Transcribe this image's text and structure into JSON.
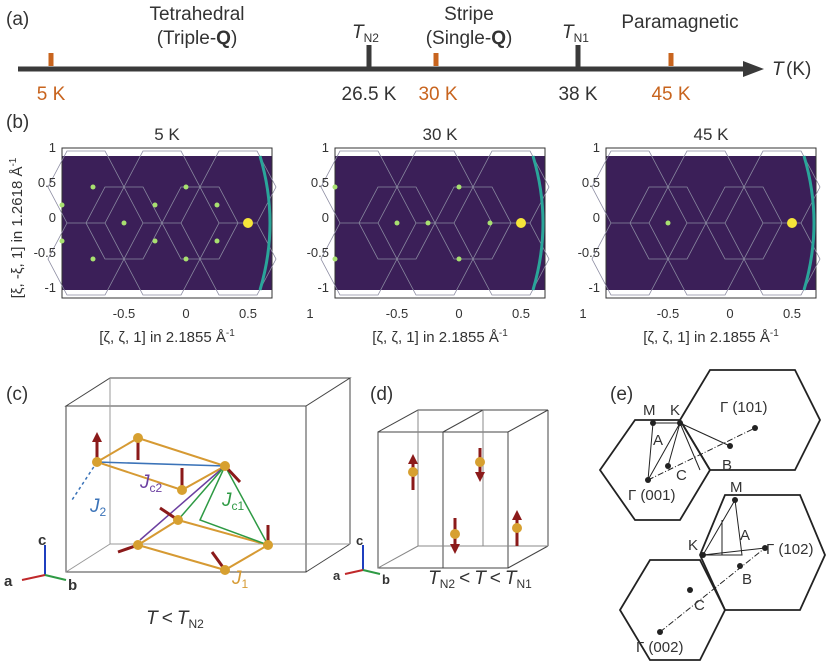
{
  "panel_labels": {
    "a": "(a)",
    "b": "(b)",
    "c": "(c)",
    "d": "(d)",
    "e": "(e)"
  },
  "phase_diagram": {
    "axis_label_T": "T",
    "axis_label_unit": "(K)",
    "phases": [
      {
        "line1": "Tetrahedral",
        "line2": "(Triple-",
        "bold": "Q",
        "close": ")"
      },
      {
        "line1": "Stripe",
        "line2": "(Single-",
        "bold": "Q",
        "close": ")"
      },
      {
        "line1": "Paramagnetic"
      }
    ],
    "transitions": [
      {
        "sym": "T",
        "sub": "N2",
        "value": "26.5 K"
      },
      {
        "sym": "T",
        "sub": "N1",
        "value": "38 K"
      }
    ],
    "measurements": [
      "5 K",
      "30 K",
      "45 K"
    ]
  },
  "maps": {
    "titles": [
      "5 K",
      "30 K",
      "45 K"
    ],
    "y_label": "[ξ, -ξ, 1] in 1.2618 Å",
    "y_label_sup": "-1",
    "x_label": "[ζ, ζ, 1] in 2.1855 Å",
    "x_label_sup": "-1",
    "x_ticks": [
      "-0.5",
      "0",
      "0.5",
      "1"
    ],
    "y_ticks": [
      "1",
      "0.5",
      "0",
      "-0.5",
      "-1"
    ],
    "map_color": "#3b1f58",
    "peak_color": "#f6e53a"
  },
  "panel_c": {
    "axes": [
      "a",
      "b",
      "c"
    ],
    "couplings": {
      "J2": "J",
      "J2sub": "2",
      "Jc2": "J",
      "Jc2sub": "c2",
      "Jc1": "J",
      "Jc1sub": "c1",
      "J1": "J",
      "J1sub": "1"
    },
    "caption": {
      "sym": "T",
      "op": "<",
      "sym2": "T",
      "sub2": "N2"
    }
  },
  "panel_d": {
    "axes": [
      "a",
      "b",
      "c"
    ],
    "caption": {
      "sym": "T",
      "sub": "N2",
      "op": "<",
      "mid": "T",
      "op2": "<",
      "sym2": "T",
      "sub2": "N1"
    }
  },
  "panel_e": {
    "upper": {
      "points": [
        "M",
        "K",
        "A",
        "C",
        "B"
      ],
      "gamma_top": "Γ (101)",
      "gamma_bottom": "Γ (001)"
    },
    "lower": {
      "points": [
        "M",
        "K",
        "A",
        "B",
        "C"
      ],
      "gamma_right": "Γ (102)",
      "gamma_bottom": "Γ (002)"
    }
  }
}
